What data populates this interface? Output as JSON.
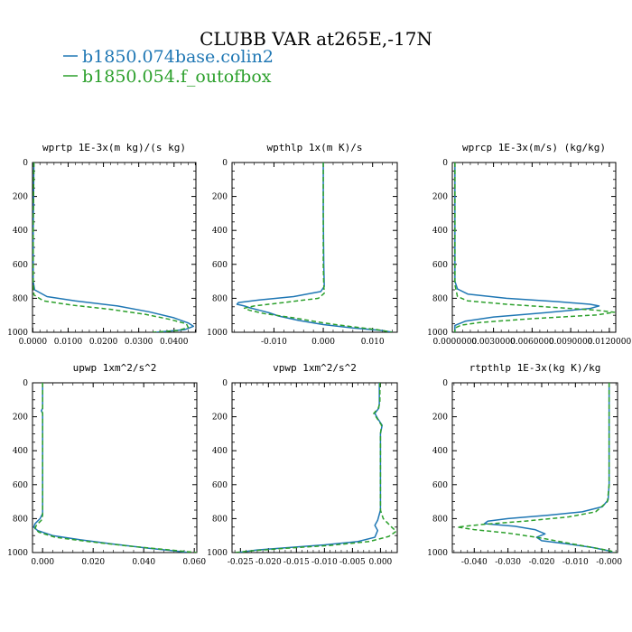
{
  "figure": {
    "title": "CLUBB VAR at265E,-17N",
    "legend": [
      {
        "name": "b1850.074base.colin2",
        "color": "#1f77b4",
        "dash": "solid"
      },
      {
        "name": "b1850.054.f_outofbox",
        "color": "#2ca02c",
        "dash": "dashed"
      }
    ]
  },
  "chart_data": [
    {
      "type": "line",
      "title": "wprtp  1E-3x(m kg)/(s kg)",
      "xlim": [
        -0.0001,
        0.0462
      ],
      "ylim": [
        1000,
        0
      ],
      "xticks": [
        0,
        0.01,
        0.02,
        0.03,
        0.04
      ],
      "xtick_labels": [
        "0.0000",
        "0.0100",
        "0.0200",
        "0.0300",
        "0.0400"
      ],
      "yticks": [
        0,
        200,
        400,
        600,
        800,
        1000
      ],
      "ytick_labels": [
        "0",
        "200",
        "400",
        "600",
        "800",
        "1000"
      ],
      "series": [
        {
          "name": "b1850.074base.colin2",
          "color": "#1f77b4",
          "dash": "solid",
          "points": [
            [
              0.0003,
              0
            ],
            [
              0.0002,
              200
            ],
            [
              0.0001,
              400
            ],
            [
              0.0001,
              600
            ],
            [
              0.0001,
              700
            ],
            [
              0.0005,
              750
            ],
            [
              0.004,
              790
            ],
            [
              0.012,
              815
            ],
            [
              0.024,
              845
            ],
            [
              0.033,
              880
            ],
            [
              0.04,
              915
            ],
            [
              0.044,
              945
            ],
            [
              0.0455,
              965
            ],
            [
              0.043,
              985
            ],
            [
              0.035,
              1000
            ]
          ]
        },
        {
          "name": "b1850.054.f_outofbox",
          "color": "#2ca02c",
          "dash": "dashed",
          "points": [
            [
              0.0003,
              0
            ],
            [
              0.0002,
              200
            ],
            [
              0.0001,
              400
            ],
            [
              0.0001,
              600
            ],
            [
              0.0001,
              700
            ],
            [
              0.0003,
              780
            ],
            [
              0.003,
              815
            ],
            [
              0.011,
              840
            ],
            [
              0.022,
              865
            ],
            [
              0.032,
              895
            ],
            [
              0.039,
              925
            ],
            [
              0.0435,
              950
            ],
            [
              0.044,
              972
            ],
            [
              0.041,
              990
            ],
            [
              0.034,
              1000
            ]
          ]
        }
      ]
    },
    {
      "type": "line",
      "title": "wpthlp  1x(m K)/s",
      "xlim": [
        -0.0185,
        0.015
      ],
      "ylim": [
        1000,
        0
      ],
      "xticks": [
        -0.01,
        0,
        0.01
      ],
      "xtick_labels": [
        "-0.010",
        "0.000",
        "0.010"
      ],
      "yticks": [
        0,
        200,
        400,
        600,
        800,
        1000
      ],
      "ytick_labels": [
        "0",
        "200",
        "400",
        "600",
        "800",
        "1000"
      ],
      "series": [
        {
          "name": "b1850.074base.colin2",
          "color": "#1f77b4",
          "dash": "solid",
          "points": [
            [
              0,
              0
            ],
            [
              0,
              300
            ],
            [
              0.0001,
              600
            ],
            [
              0.0002,
              730
            ],
            [
              -0.0005,
              760
            ],
            [
              -0.006,
              790
            ],
            [
              -0.013,
              810
            ],
            [
              -0.0172,
              825
            ],
            [
              -0.0175,
              835
            ],
            [
              -0.016,
              845
            ],
            [
              -0.015,
              855
            ],
            [
              -0.013,
              870
            ],
            [
              -0.011,
              885
            ],
            [
              -0.009,
              905
            ],
            [
              -0.005,
              930
            ],
            [
              0,
              955
            ],
            [
              0.006,
              975
            ],
            [
              0.012,
              990
            ],
            [
              0.014,
              1000
            ]
          ]
        },
        {
          "name": "b1850.054.f_outofbox",
          "color": "#2ca02c",
          "dash": "dashed",
          "points": [
            [
              0,
              0
            ],
            [
              0,
              300
            ],
            [
              0,
              600
            ],
            [
              0.0001,
              720
            ],
            [
              0.0002,
              770
            ],
            [
              -0.001,
              800
            ],
            [
              -0.008,
              825
            ],
            [
              -0.014,
              845
            ],
            [
              -0.016,
              858
            ],
            [
              -0.015,
              870
            ],
            [
              -0.012,
              890
            ],
            [
              -0.006,
              915
            ],
            [
              0,
              945
            ],
            [
              0.006,
              968
            ],
            [
              0.011,
              985
            ],
            [
              0.014,
              1000
            ]
          ]
        }
      ]
    },
    {
      "type": "line",
      "title": "wprcp  1E-3x(m/s) (kg/kg)",
      "xlim": [
        -0.0002,
        0.0125
      ],
      "ylim": [
        1000,
        0
      ],
      "xticks": [
        0,
        0.003,
        0.006,
        0.009,
        0.012
      ],
      "xtick_labels": [
        "0.0000000",
        "0.0030000",
        "0.0060000",
        "0.0090000",
        "0.0120000"
      ],
      "yticks": [
        0,
        200,
        400,
        600,
        800,
        1000
      ],
      "ytick_labels": [
        "0",
        "200",
        "400",
        "600",
        "800",
        "1000"
      ],
      "series": [
        {
          "name": "b1850.074base.colin2",
          "color": "#1f77b4",
          "dash": "solid",
          "points": [
            [
              0,
              0
            ],
            [
              0,
              200
            ],
            [
              0,
              400
            ],
            [
              0,
              600
            ],
            [
              0,
              700
            ],
            [
              0.0002,
              745
            ],
            [
              0.001,
              775
            ],
            [
              0.004,
              800
            ],
            [
              0.008,
              820
            ],
            [
              0.0105,
              835
            ],
            [
              0.0112,
              845
            ],
            [
              0.0105,
              860
            ],
            [
              0.007,
              885
            ],
            [
              0.003,
              910
            ],
            [
              0.0008,
              935
            ],
            [
              0,
              960
            ],
            [
              0,
              1000
            ]
          ]
        },
        {
          "name": "b1850.054.f_outofbox",
          "color": "#2ca02c",
          "dash": "dashed",
          "points": [
            [
              0,
              0
            ],
            [
              0,
              200
            ],
            [
              0,
              400
            ],
            [
              0,
              600
            ],
            [
              0,
              720
            ],
            [
              0.0002,
              790
            ],
            [
              0.001,
              815
            ],
            [
              0.004,
              835
            ],
            [
              0.008,
              855
            ],
            [
              0.011,
              870
            ],
            [
              0.0124,
              882
            ],
            [
              0.011,
              898
            ],
            [
              0.006,
              920
            ],
            [
              0.002,
              942
            ],
            [
              0.0005,
              958
            ],
            [
              0,
              975
            ],
            [
              0,
              1000
            ]
          ]
        }
      ]
    },
    {
      "type": "line",
      "title": "upwp  1xm^2/s^2",
      "xlim": [
        -0.004,
        0.061
      ],
      "ylim": [
        1000,
        0
      ],
      "xticks": [
        0,
        0.02,
        0.04,
        0.06
      ],
      "xtick_labels": [
        "0.000",
        "0.020",
        "0.040",
        "0.060"
      ],
      "yticks": [
        0,
        200,
        400,
        600,
        800,
        1000
      ],
      "ytick_labels": [
        "0",
        "200",
        "400",
        "600",
        "800",
        "1000"
      ],
      "series": [
        {
          "name": "b1850.074base.colin2",
          "color": "#1f77b4",
          "dash": "solid",
          "points": [
            [
              0,
              0
            ],
            [
              0,
              150
            ],
            [
              -0.0005,
              165
            ],
            [
              0,
              180
            ],
            [
              0,
              400
            ],
            [
              0,
              600
            ],
            [
              0,
              770
            ],
            [
              -0.001,
              800
            ],
            [
              -0.003,
              830
            ],
            [
              -0.0035,
              850
            ],
            [
              -0.002,
              870
            ],
            [
              0.004,
              900
            ],
            [
              0.015,
              925
            ],
            [
              0.028,
              950
            ],
            [
              0.042,
              975
            ],
            [
              0.052,
              990
            ],
            [
              0.058,
              1000
            ]
          ]
        },
        {
          "name": "b1850.054.f_outofbox",
          "color": "#2ca02c",
          "dash": "dashed",
          "points": [
            [
              0,
              0
            ],
            [
              0,
              150
            ],
            [
              -0.0003,
              165
            ],
            [
              0,
              180
            ],
            [
              0,
              400
            ],
            [
              0,
              600
            ],
            [
              0,
              780
            ],
            [
              -0.0005,
              810
            ],
            [
              -0.0025,
              840
            ],
            [
              -0.003,
              860
            ],
            [
              -0.0015,
              880
            ],
            [
              0.005,
              910
            ],
            [
              0.018,
              935
            ],
            [
              0.033,
              960
            ],
            [
              0.047,
              980
            ],
            [
              0.056,
              993
            ],
            [
              0.061,
              1000
            ]
          ]
        }
      ]
    },
    {
      "type": "line",
      "title": "vpwp  1xm^2/s^2",
      "xlim": [
        -0.0265,
        0.003
      ],
      "ylim": [
        1000,
        0
      ],
      "xticks": [
        -0.025,
        -0.02,
        -0.015,
        -0.01,
        -0.005,
        0
      ],
      "xtick_labels": [
        "-0.025",
        "-0.020",
        "-0.015",
        "-0.010",
        "-0.005",
        "0.000"
      ],
      "yticks": [
        0,
        200,
        400,
        600,
        800,
        1000
      ],
      "ytick_labels": [
        "0",
        "200",
        "400",
        "600",
        "800",
        "1000"
      ],
      "series": [
        {
          "name": "b1850.074base.colin2",
          "color": "#1f77b4",
          "dash": "solid",
          "points": [
            [
              -0.0002,
              0
            ],
            [
              -0.0002,
              120
            ],
            [
              -0.0003,
              150
            ],
            [
              -0.001,
              180
            ],
            [
              -0.0005,
              210
            ],
            [
              0.0003,
              250
            ],
            [
              0,
              300
            ],
            [
              0,
              400
            ],
            [
              0,
              600
            ],
            [
              0,
              750
            ],
            [
              -0.0005,
              810
            ],
            [
              -0.001,
              840
            ],
            [
              -0.0005,
              870
            ],
            [
              -0.001,
              910
            ],
            [
              -0.004,
              935
            ],
            [
              -0.01,
              955
            ],
            [
              -0.017,
              972
            ],
            [
              -0.022,
              985
            ],
            [
              -0.0255,
              1000
            ]
          ]
        },
        {
          "name": "b1850.054.f_outofbox",
          "color": "#2ca02c",
          "dash": "dashed",
          "points": [
            [
              -0.0001,
              0
            ],
            [
              -0.0001,
              120
            ],
            [
              -0.0004,
              150
            ],
            [
              -0.0012,
              180
            ],
            [
              -0.0006,
              210
            ],
            [
              0.0002,
              250
            ],
            [
              0,
              300
            ],
            [
              0,
              400
            ],
            [
              0,
              600
            ],
            [
              0,
              750
            ],
            [
              0.0005,
              800
            ],
            [
              0.002,
              850
            ],
            [
              0.0028,
              875
            ],
            [
              0.0015,
              905
            ],
            [
              -0.002,
              935
            ],
            [
              -0.009,
              958
            ],
            [
              -0.017,
              975
            ],
            [
              -0.023,
              990
            ],
            [
              -0.026,
              1000
            ]
          ]
        }
      ]
    },
    {
      "type": "line",
      "title": "rtpthlp  1E-3x(kg K)/kg",
      "xlim": [
        -0.0465,
        0.0025
      ],
      "ylim": [
        1000,
        0
      ],
      "xticks": [
        -0.04,
        -0.03,
        -0.02,
        -0.01,
        0
      ],
      "xtick_labels": [
        "-0.040",
        "-0.030",
        "-0.020",
        "-0.010",
        "-0.000"
      ],
      "yticks": [
        0,
        200,
        400,
        600,
        800,
        1000
      ],
      "ytick_labels": [
        "0",
        "200",
        "400",
        "600",
        "800",
        "1000"
      ],
      "series": [
        {
          "name": "b1850.074base.colin2",
          "color": "#1f77b4",
          "dash": "solid",
          "points": [
            [
              0,
              0
            ],
            [
              0,
              300
            ],
            [
              0,
              600
            ],
            [
              -0.0003,
              690
            ],
            [
              -0.002,
              730
            ],
            [
              -0.008,
              760
            ],
            [
              -0.018,
              780
            ],
            [
              -0.03,
              800
            ],
            [
              -0.036,
              815
            ],
            [
              -0.037,
              830
            ],
            [
              -0.028,
              845
            ],
            [
              -0.022,
              865
            ],
            [
              -0.019,
              890
            ],
            [
              -0.0215,
              910
            ],
            [
              -0.02,
              930
            ],
            [
              -0.012,
              950
            ],
            [
              -0.005,
              970
            ],
            [
              0,
              990
            ],
            [
              0.001,
              1000
            ]
          ]
        },
        {
          "name": "b1850.054.f_outofbox",
          "color": "#2ca02c",
          "dash": "dashed",
          "points": [
            [
              0,
              0
            ],
            [
              0,
              300
            ],
            [
              0,
              600
            ],
            [
              -0.0005,
              700
            ],
            [
              -0.004,
              760
            ],
            [
              -0.012,
              790
            ],
            [
              -0.025,
              815
            ],
            [
              -0.038,
              835
            ],
            [
              -0.045,
              850
            ],
            [
              -0.04,
              865
            ],
            [
              -0.03,
              885
            ],
            [
              -0.02,
              915
            ],
            [
              -0.012,
              945
            ],
            [
              -0.005,
              970
            ],
            [
              0,
              988
            ],
            [
              0.002,
              1000
            ]
          ]
        }
      ]
    }
  ]
}
